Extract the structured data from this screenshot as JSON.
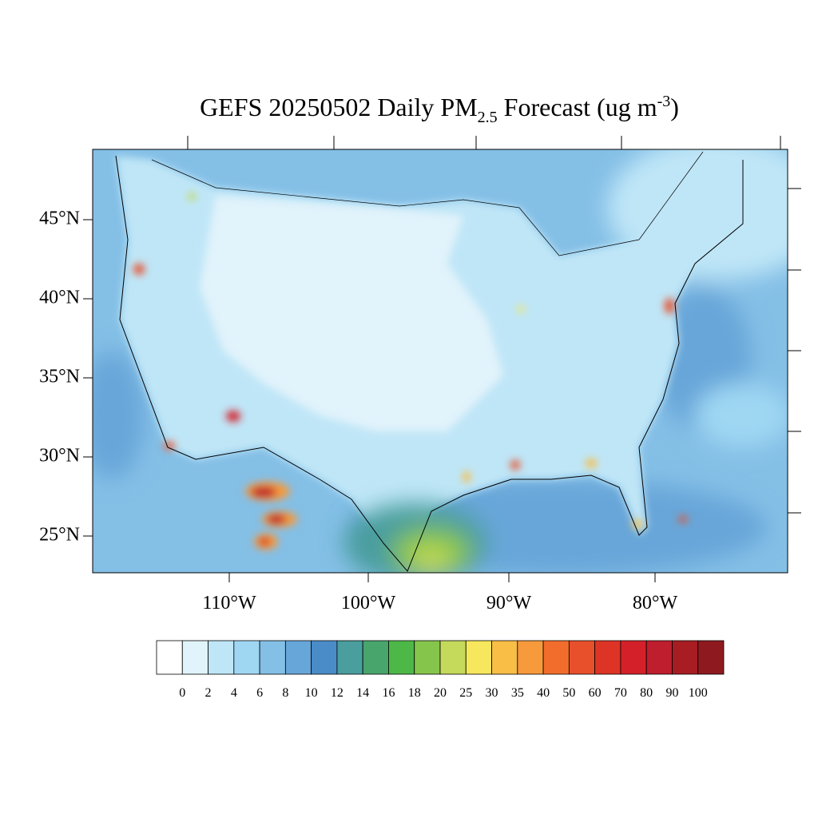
{
  "title_parts": [
    "GEFS 20250502 Daily PM",
    "2.5",
    " Forecast (ug m",
    "-3",
    ")"
  ],
  "lat_labels": [
    "45°N",
    "40°N",
    "35°N",
    "30°N",
    "25°N"
  ],
  "lon_labels": [
    "110°W",
    "100°W",
    "90°W",
    "80°W"
  ],
  "colorbar": {
    "colors": [
      "#ffffff",
      "#e1f3fb",
      "#bfe6f7",
      "#9fd7f3",
      "#84bfe6",
      "#67a6d9",
      "#4a8cc8",
      "#4a9e9e",
      "#48a56c",
      "#4db848",
      "#86c54b",
      "#c5d95a",
      "#f7e75c",
      "#f8be46",
      "#f69a3b",
      "#f26d2c",
      "#e8502b",
      "#de3426",
      "#d42029",
      "#be1e2d",
      "#a71d22",
      "#8e1a1f"
    ],
    "levels": [
      0,
      2,
      4,
      6,
      8,
      10,
      12,
      14,
      16,
      18,
      20,
      25,
      30,
      35,
      40,
      50,
      60,
      70,
      80,
      90,
      100
    ]
  }
}
